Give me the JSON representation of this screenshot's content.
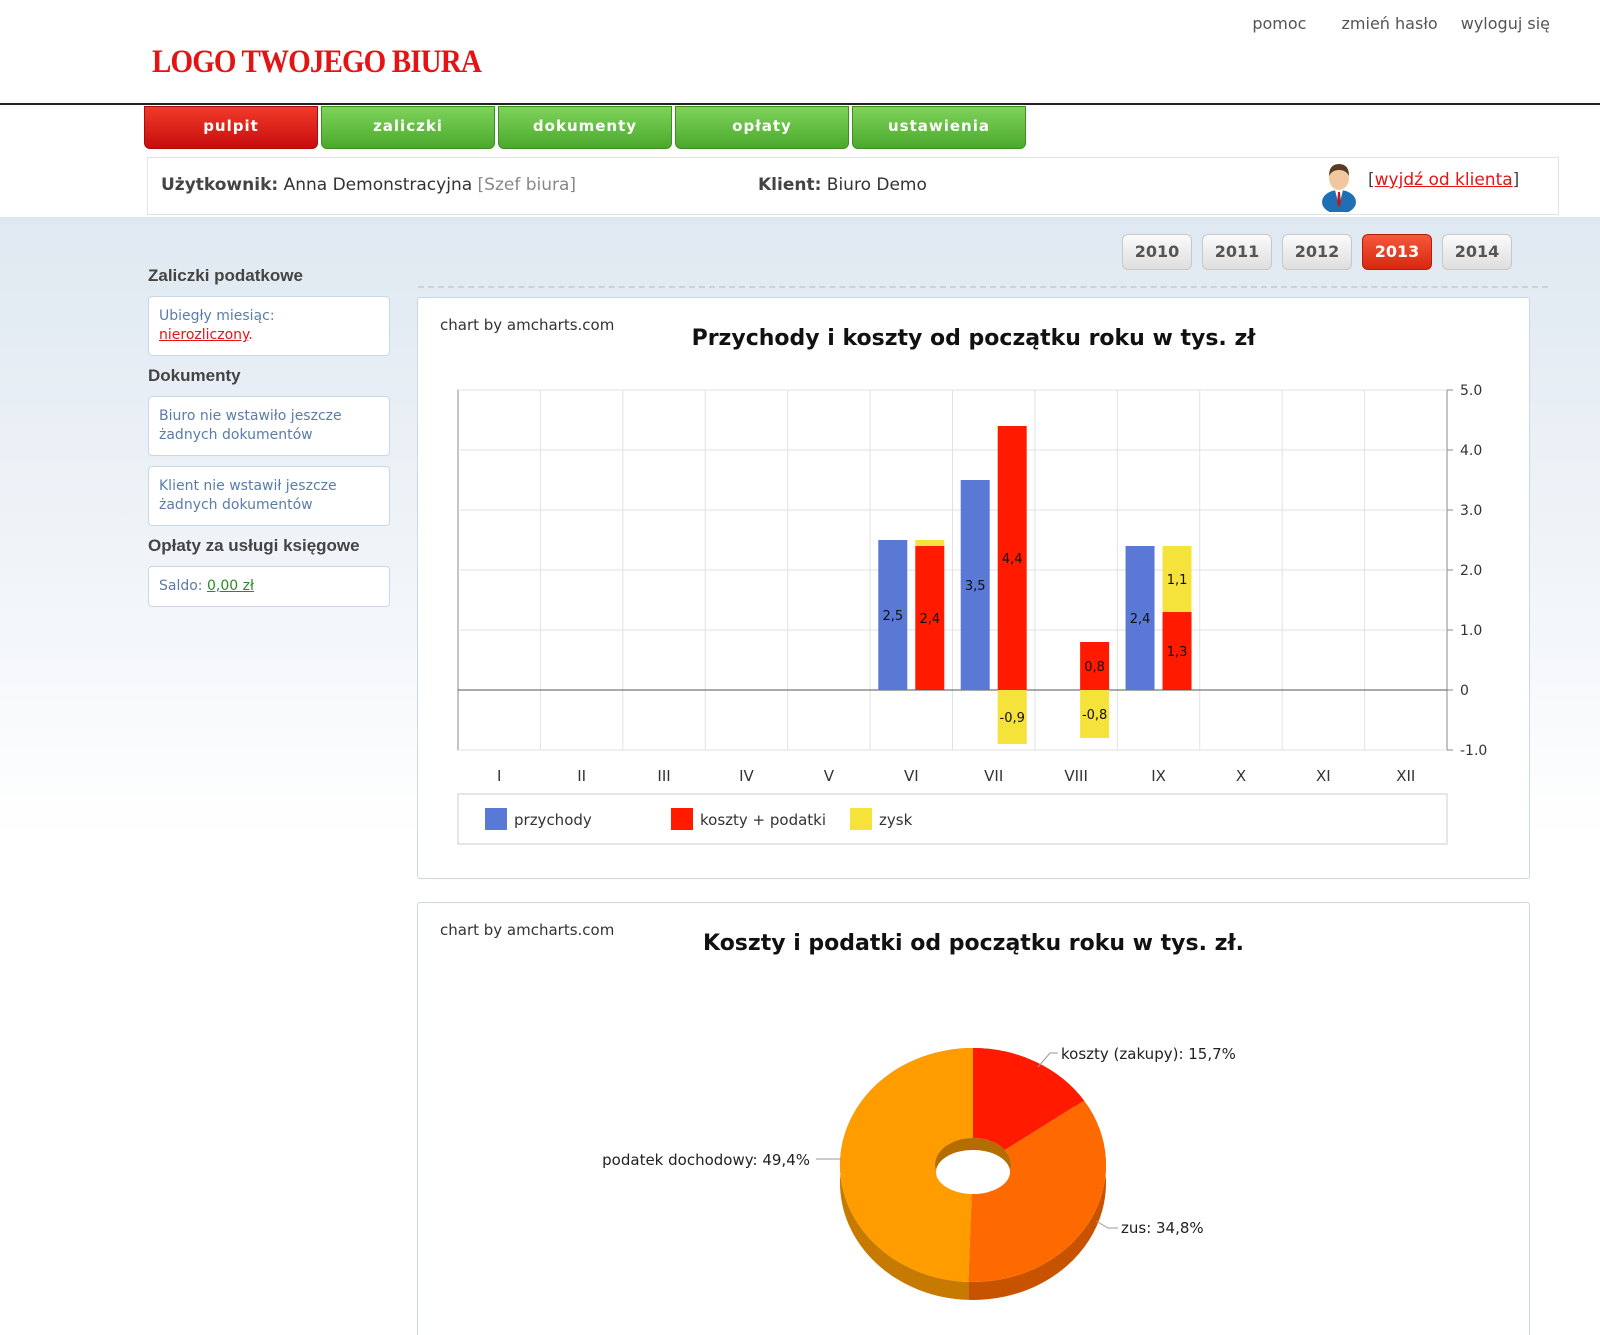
{
  "top_links": {
    "help": "pomoc",
    "change_password": "zmień hasło",
    "logout": "wyloguj się"
  },
  "logo": "LOGO TWOJEGO BIURA",
  "tabs": [
    "pulpit",
    "zaliczki",
    "dokumenty",
    "opłaty",
    "ustawienia"
  ],
  "active_tab": "pulpit",
  "userbar": {
    "user_label": "Użytkownik:",
    "user_name": "Anna Demonstracyjna",
    "user_role": "[Szef biura]",
    "client_label": "Klient:",
    "client_name": "Biuro Demo",
    "exit_open": "[",
    "exit_link": "wyjdź od klienta",
    "exit_close": "]"
  },
  "years": [
    "2010",
    "2011",
    "2012",
    "2013",
    "2014"
  ],
  "active_year": "2013",
  "sidebar": {
    "advances_heading": "Zaliczki podatkowe",
    "advances_text": "Ubiegły miesiąc:",
    "advances_link": "nierozliczony",
    "advances_dot": ".",
    "documents_heading": "Dokumenty",
    "documents_office": "Biuro nie wstawiło jeszcze żadnych dokumentów",
    "documents_client": "Klient nie wstawił jeszcze żadnych dokumentów",
    "fees_heading": "Opłaty za usługi księgowe",
    "balance_label": "Saldo:",
    "balance_value": "0,00 zł"
  },
  "credit": "chart by amcharts.com",
  "colors": {
    "przychody": "#5a78d6",
    "koszty": "#ff1a00",
    "zysk": "#f5e23a"
  },
  "chart_data": [
    {
      "type": "bar",
      "title": "Przychody i koszty od początku roku w tys. zł",
      "categories": [
        "I",
        "II",
        "III",
        "IV",
        "V",
        "VI",
        "VII",
        "VIII",
        "IX",
        "X",
        "XI",
        "XII"
      ],
      "ylim": [
        -1.0,
        5.0
      ],
      "yticks": [
        "5.0",
        "4.0",
        "3.0",
        "2.0",
        "1.0",
        "0",
        "-1.0"
      ],
      "yaxis_position": "right",
      "grid": true,
      "legend_position": "bottom",
      "series": [
        {
          "name": "przychody",
          "values": [
            null,
            null,
            null,
            null,
            null,
            2.5,
            3.5,
            null,
            2.4,
            null,
            null,
            null
          ],
          "labels": [
            "",
            "",
            "",
            "",
            "",
            "2,5",
            "3,5",
            "",
            "2,4",
            "",
            "",
            ""
          ]
        },
        {
          "name": "koszty + podatki",
          "values": [
            null,
            null,
            null,
            null,
            null,
            2.4,
            4.4,
            0.8,
            1.3,
            null,
            null,
            null
          ],
          "labels": [
            "",
            "",
            "",
            "",
            "",
            "2,4",
            "4,4",
            "0,8",
            "1,3",
            "",
            "",
            ""
          ]
        },
        {
          "name": "zysk",
          "values": [
            null,
            null,
            null,
            null,
            null,
            0.1,
            -0.9,
            -0.8,
            1.1,
            null,
            null,
            null
          ],
          "labels": [
            "",
            "",
            "",
            "",
            "",
            "",
            "-0,9",
            "-0,8",
            "1,1",
            "",
            "",
            ""
          ]
        }
      ]
    },
    {
      "type": "pie",
      "title": "Koszty i podatki od początku roku w tys. zł.",
      "slices": [
        {
          "name": "koszty (zakupy)",
          "value": 15.7,
          "label": "koszty (zakupy): 15,7%",
          "color": "#ff1a00"
        },
        {
          "name": "zus",
          "value": 34.8,
          "label": "zus: 34,8%",
          "color": "#ff6a00"
        },
        {
          "name": "podatek dochodowy",
          "value": 49.4,
          "label": "podatek dochodowy: 49,4%",
          "color": "#ff9c00"
        }
      ]
    }
  ]
}
